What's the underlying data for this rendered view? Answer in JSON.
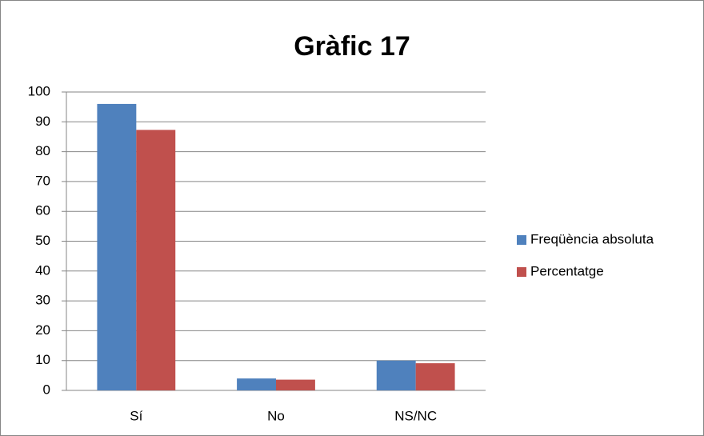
{
  "chart_data": {
    "type": "bar",
    "title": "Gràfic 17",
    "categories": [
      "Sí",
      "No",
      "NS/NC"
    ],
    "series": [
      {
        "name": "Freqüència absoluta",
        "color": "#4f81bd",
        "values": [
          96,
          4,
          10
        ]
      },
      {
        "name": "Percentatge",
        "color": "#c0504d",
        "values": [
          87.3,
          3.6,
          9.1
        ]
      }
    ],
    "ylim": [
      0,
      100
    ],
    "yticks": [
      0,
      10,
      20,
      30,
      40,
      50,
      60,
      70,
      80,
      90,
      100
    ],
    "grid": true,
    "legend": "right"
  }
}
